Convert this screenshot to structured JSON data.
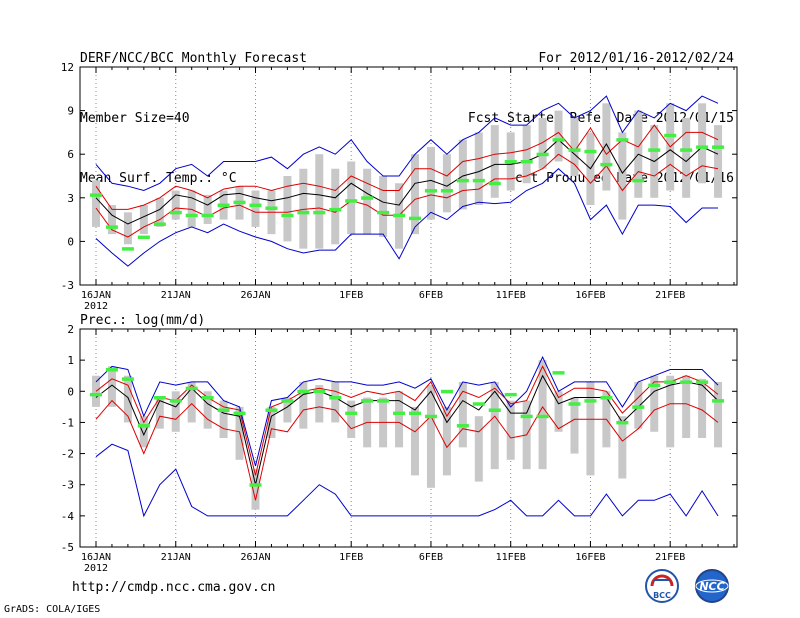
{
  "header": {
    "left": [
      "DERF/NCC/BCC Monthly Forecast",
      "Member Size=40",
      "Mean Surf. Temp.: °C"
    ],
    "right": [
      "For 2012/01/16-2012/02/24",
      "Fcst Started Refer Date 2012/01/15",
      "Fcst Produced Date 2012/01/16"
    ]
  },
  "footer": {
    "url": "http://cmdp.ncc.cma.gov.cn",
    "grads": "GrADS: COLA/IGES",
    "logo_left": "BCC",
    "logo_right": "NCC"
  },
  "colors": {
    "mean": "#000000",
    "spread": "#dd0000",
    "envelope": "#0000cc",
    "box": "#c8c8c8",
    "marker": "#44ee44",
    "grid": "#888888"
  },
  "chart_data": [
    {
      "type": "line",
      "title": "Mean Surf. Temp.: °C",
      "ylim": [
        -3,
        12
      ],
      "yticks": [
        -3,
        0,
        3,
        6,
        9,
        12
      ],
      "xticks": [
        {
          "day": 0,
          "label": "16JAN",
          "sub": "2012"
        },
        {
          "day": 5,
          "label": "21JAN"
        },
        {
          "day": 10,
          "label": "26JAN"
        },
        {
          "day": 16,
          "label": "1FEB"
        },
        {
          "day": 21,
          "label": "6FEB"
        },
        {
          "day": 26,
          "label": "11FEB"
        },
        {
          "day": 31,
          "label": "16FEB"
        },
        {
          "day": 36,
          "label": "21FEB"
        }
      ],
      "series": [
        {
          "name": "max",
          "values": [
            5.3,
            4.0,
            3.8,
            3.5,
            4.0,
            5.0,
            5.3,
            4.5,
            5.5,
            5.5,
            5.5,
            5.8,
            5.0,
            6.0,
            6.5,
            6.0,
            7.0,
            5.5,
            4.5,
            4.5,
            6.0,
            7.0,
            6.0,
            7.0,
            7.5,
            8.5,
            8.0,
            8.0,
            9.0,
            9.5,
            8.5,
            9.0,
            10.0,
            7.5,
            9.0,
            8.5,
            9.5,
            9.0,
            10.0,
            9.5
          ]
        },
        {
          "name": "upper",
          "values": [
            3.8,
            2.2,
            2.2,
            2.5,
            3.0,
            3.8,
            3.5,
            3.0,
            3.6,
            3.8,
            3.8,
            3.5,
            3.8,
            4.0,
            3.8,
            3.5,
            4.5,
            4.0,
            3.5,
            3.5,
            5.0,
            5.0,
            4.5,
            5.5,
            5.7,
            6.0,
            6.1,
            6.3,
            6.8,
            7.5,
            6.2,
            7.8,
            6.0,
            7.0,
            6.5,
            8.0,
            6.5,
            7.5,
            7.5,
            7.0
          ]
        },
        {
          "name": "mean",
          "values": [
            3.0,
            1.8,
            1.2,
            1.7,
            2.2,
            3.2,
            3.0,
            2.5,
            3.2,
            3.3,
            3.0,
            2.8,
            3.0,
            3.3,
            3.2,
            3.0,
            4.0,
            3.3,
            2.7,
            2.5,
            4.0,
            4.2,
            3.8,
            4.5,
            4.8,
            5.3,
            5.3,
            5.5,
            6.0,
            7.0,
            6.0,
            5.0,
            6.7,
            4.7,
            6.0,
            5.5,
            6.3,
            5.5,
            6.5,
            6.0
          ]
        },
        {
          "name": "lower",
          "values": [
            2.3,
            0.8,
            0.3,
            1.0,
            1.5,
            2.3,
            2.2,
            1.7,
            2.3,
            2.5,
            2.0,
            2.0,
            2.0,
            2.2,
            2.3,
            2.0,
            2.8,
            2.5,
            1.8,
            1.8,
            2.9,
            3.2,
            3.0,
            3.5,
            3.6,
            4.3,
            4.3,
            4.5,
            5.0,
            6.0,
            5.3,
            4.0,
            5.2,
            3.5,
            4.8,
            4.5,
            5.3,
            4.5,
            5.2,
            5.0
          ]
        },
        {
          "name": "min",
          "values": [
            0.2,
            -0.8,
            -1.7,
            -0.8,
            0.0,
            0.6,
            1.0,
            0.6,
            1.2,
            0.7,
            0.3,
            0.0,
            -0.5,
            -0.8,
            -0.6,
            -0.6,
            0.5,
            0.5,
            0.5,
            -1.2,
            1.0,
            2.0,
            1.5,
            2.4,
            2.7,
            2.6,
            2.7,
            3.5,
            4.0,
            5.0,
            4.0,
            1.5,
            2.5,
            0.5,
            2.5,
            2.5,
            2.4,
            1.3,
            2.3,
            2.3
          ]
        }
      ],
      "boxes": [
        [
          1.0,
          4.2
        ],
        [
          0.5,
          2.5
        ],
        [
          -0.2,
          2.0
        ],
        [
          0.5,
          2.5
        ],
        [
          1.0,
          3.0
        ],
        [
          1.5,
          3.5
        ],
        [
          1.0,
          3.5
        ],
        [
          1.2,
          3.2
        ],
        [
          1.5,
          3.5
        ],
        [
          1.5,
          3.8
        ],
        [
          1.0,
          3.5
        ],
        [
          0.5,
          3.5
        ],
        [
          0.0,
          4.5
        ],
        [
          -0.5,
          5.0
        ],
        [
          -0.5,
          6.0
        ],
        [
          -0.2,
          5.0
        ],
        [
          0.5,
          5.5
        ],
        [
          0.5,
          5.0
        ],
        [
          0.3,
          4.5
        ],
        [
          -0.5,
          4.0
        ],
        [
          0.5,
          6.0
        ],
        [
          1.5,
          6.5
        ],
        [
          2.0,
          6.0
        ],
        [
          2.2,
          7.0
        ],
        [
          2.5,
          7.5
        ],
        [
          3.0,
          8.0
        ],
        [
          3.5,
          7.5
        ],
        [
          4.0,
          8.0
        ],
        [
          5.0,
          8.5
        ],
        [
          5.5,
          9.0
        ],
        [
          4.5,
          8.5
        ],
        [
          2.5,
          7.5
        ],
        [
          3.5,
          9.5
        ],
        [
          1.5,
          7.5
        ],
        [
          3.0,
          9.0
        ],
        [
          3.0,
          8.0
        ],
        [
          3.5,
          9.5
        ],
        [
          3.0,
          8.5
        ],
        [
          4.0,
          9.5
        ],
        [
          3.0,
          8.0
        ]
      ],
      "markers": [
        3.2,
        1.0,
        -0.5,
        0.3,
        1.2,
        2.0,
        1.8,
        1.8,
        2.5,
        2.7,
        2.5,
        2.3,
        1.8,
        2.0,
        2.0,
        2.2,
        2.8,
        3.0,
        2.0,
        1.8,
        1.6,
        3.5,
        3.5,
        4.2,
        4.2,
        4.0,
        5.5,
        5.5,
        6.0,
        7.0,
        6.3,
        6.2,
        5.3,
        7.0,
        4.2,
        6.3,
        7.3,
        6.3,
        6.5,
        6.5
      ]
    },
    {
      "type": "line",
      "title": "Prec.: log(mm/d)",
      "ylim": [
        -5,
        2
      ],
      "yticks": [
        -5,
        -4,
        -3,
        -2,
        -1,
        0,
        1,
        2
      ],
      "xticks": [
        {
          "day": 0,
          "label": "16JAN",
          "sub": "2012"
        },
        {
          "day": 5,
          "label": "21JAN"
        },
        {
          "day": 10,
          "label": "26JAN"
        },
        {
          "day": 16,
          "label": "1FEB"
        },
        {
          "day": 21,
          "label": "6FEB"
        },
        {
          "day": 26,
          "label": "11FEB"
        },
        {
          "day": 31,
          "label": "16FEB"
        },
        {
          "day": 36,
          "label": "21FEB"
        }
      ],
      "series": [
        {
          "name": "max",
          "values": [
            0.3,
            0.8,
            0.7,
            -0.8,
            0.3,
            0.2,
            0.3,
            0.3,
            -0.3,
            -0.5,
            -2.4,
            -0.3,
            -0.2,
            0.3,
            0.4,
            0.3,
            0.3,
            0.2,
            0.2,
            0.3,
            0.1,
            0.4,
            -0.6,
            0.3,
            0.2,
            0.3,
            -0.5,
            0.0,
            1.1,
            0.0,
            0.3,
            0.3,
            0.3,
            -0.5,
            0.3,
            0.5,
            0.7,
            0.7,
            0.7,
            0.2
          ]
        },
        {
          "name": "upper",
          "values": [
            0.0,
            0.4,
            0.2,
            -1.0,
            -0.2,
            -0.3,
            0.2,
            -0.2,
            -0.5,
            -0.6,
            -2.7,
            -0.5,
            -0.3,
            0.0,
            0.1,
            0.0,
            -0.2,
            0.0,
            -0.1,
            0.0,
            -0.3,
            0.3,
            -0.8,
            0.0,
            -0.2,
            0.1,
            -0.4,
            -0.3,
            0.8,
            -0.2,
            0.1,
            0.1,
            0.0,
            -0.7,
            -0.2,
            0.3,
            0.3,
            0.5,
            0.3,
            -0.1
          ]
        },
        {
          "name": "mean",
          "values": [
            -0.2,
            0.2,
            -0.2,
            -1.4,
            -0.3,
            -0.5,
            0.1,
            -0.4,
            -0.7,
            -0.8,
            -3.0,
            -0.8,
            -0.5,
            -0.1,
            0.0,
            -0.2,
            -0.5,
            -0.3,
            -0.3,
            -0.3,
            -0.6,
            0.0,
            -1.0,
            -0.3,
            -0.6,
            0.0,
            -0.7,
            -0.7,
            0.5,
            -0.4,
            -0.2,
            -0.2,
            -0.2,
            -1.0,
            -0.5,
            0.0,
            0.2,
            0.3,
            0.2,
            -0.3
          ]
        },
        {
          "name": "lower",
          "values": [
            -0.9,
            -0.3,
            -0.8,
            -2.0,
            -0.8,
            -0.9,
            -0.4,
            -0.9,
            -1.2,
            -1.3,
            -3.5,
            -1.2,
            -1.3,
            -0.6,
            -0.5,
            -0.6,
            -1.2,
            -1.0,
            -1.0,
            -1.0,
            -1.3,
            -0.8,
            -1.8,
            -1.2,
            -1.3,
            -0.8,
            -1.5,
            -1.4,
            -0.5,
            -1.2,
            -0.9,
            -0.9,
            -0.9,
            -1.6,
            -1.2,
            -0.6,
            -0.4,
            -0.4,
            -0.6,
            -1.0
          ]
        },
        {
          "name": "min",
          "values": [
            -2.1,
            -1.7,
            -1.9,
            -4.0,
            -3.0,
            -2.5,
            -3.7,
            -4.0,
            -4.0,
            -4.0,
            -4.0,
            -4.0,
            -4.0,
            -3.5,
            -3.0,
            -3.3,
            -4.0,
            -4.0,
            -4.0,
            -4.0,
            -4.0,
            -4.0,
            -4.0,
            -4.0,
            -4.0,
            -3.8,
            -3.5,
            -4.0,
            -4.0,
            -3.5,
            -4.0,
            -4.0,
            -3.3,
            -4.0,
            -3.5,
            -3.5,
            -3.3,
            -4.0,
            -3.2,
            -4.0
          ]
        }
      ],
      "boxes": [
        [
          -0.5,
          0.5
        ],
        [
          -0.5,
          0.8
        ],
        [
          -1.0,
          0.5
        ],
        [
          -1.8,
          -0.8
        ],
        [
          -1.2,
          -0.2
        ],
        [
          -1.3,
          0.0
        ],
        [
          -1.0,
          0.3
        ],
        [
          -1.2,
          0.0
        ],
        [
          -1.5,
          -0.3
        ],
        [
          -2.2,
          -0.5
        ],
        [
          -3.8,
          -2.5
        ],
        [
          -1.5,
          -0.5
        ],
        [
          -1.0,
          -0.2
        ],
        [
          -1.2,
          0.3
        ],
        [
          -1.0,
          0.2
        ],
        [
          -1.0,
          0.3
        ],
        [
          -1.5,
          -0.3
        ],
        [
          -1.8,
          -0.2
        ],
        [
          -1.8,
          -0.2
        ],
        [
          -1.8,
          0.0
        ],
        [
          -2.7,
          -0.5
        ],
        [
          -3.1,
          0.2
        ],
        [
          -2.7,
          -0.5
        ],
        [
          -1.8,
          0.3
        ],
        [
          -2.9,
          -0.8
        ],
        [
          -2.5,
          0.3
        ],
        [
          -2.2,
          -0.3
        ],
        [
          -2.5,
          -0.3
        ],
        [
          -2.5,
          1.0
        ],
        [
          -1.3,
          0.0
        ],
        [
          -2.0,
          -0.2
        ],
        [
          -2.7,
          0.3
        ],
        [
          -1.8,
          0.0
        ],
        [
          -2.8,
          -0.8
        ],
        [
          -1.2,
          0.3
        ],
        [
          -1.3,
          0.5
        ],
        [
          -1.8,
          0.5
        ],
        [
          -1.5,
          0.5
        ],
        [
          -1.5,
          0.4
        ],
        [
          -1.8,
          0.3
        ]
      ],
      "markers": [
        -0.1,
        0.7,
        0.4,
        -1.1,
        -0.2,
        -0.3,
        0.1,
        -0.2,
        -0.6,
        -0.7,
        -3.0,
        -0.6,
        -0.3,
        0.0,
        0.0,
        -0.2,
        -0.7,
        -0.3,
        -0.3,
        -0.7,
        -0.7,
        -0.8,
        0.0,
        -1.1,
        -0.4,
        -0.6,
        -0.1,
        -0.8,
        -0.8,
        0.6,
        -0.4,
        -0.3,
        -0.2,
        -1.0,
        -0.5,
        0.2,
        0.3,
        0.3,
        0.3,
        -0.3
      ]
    }
  ]
}
